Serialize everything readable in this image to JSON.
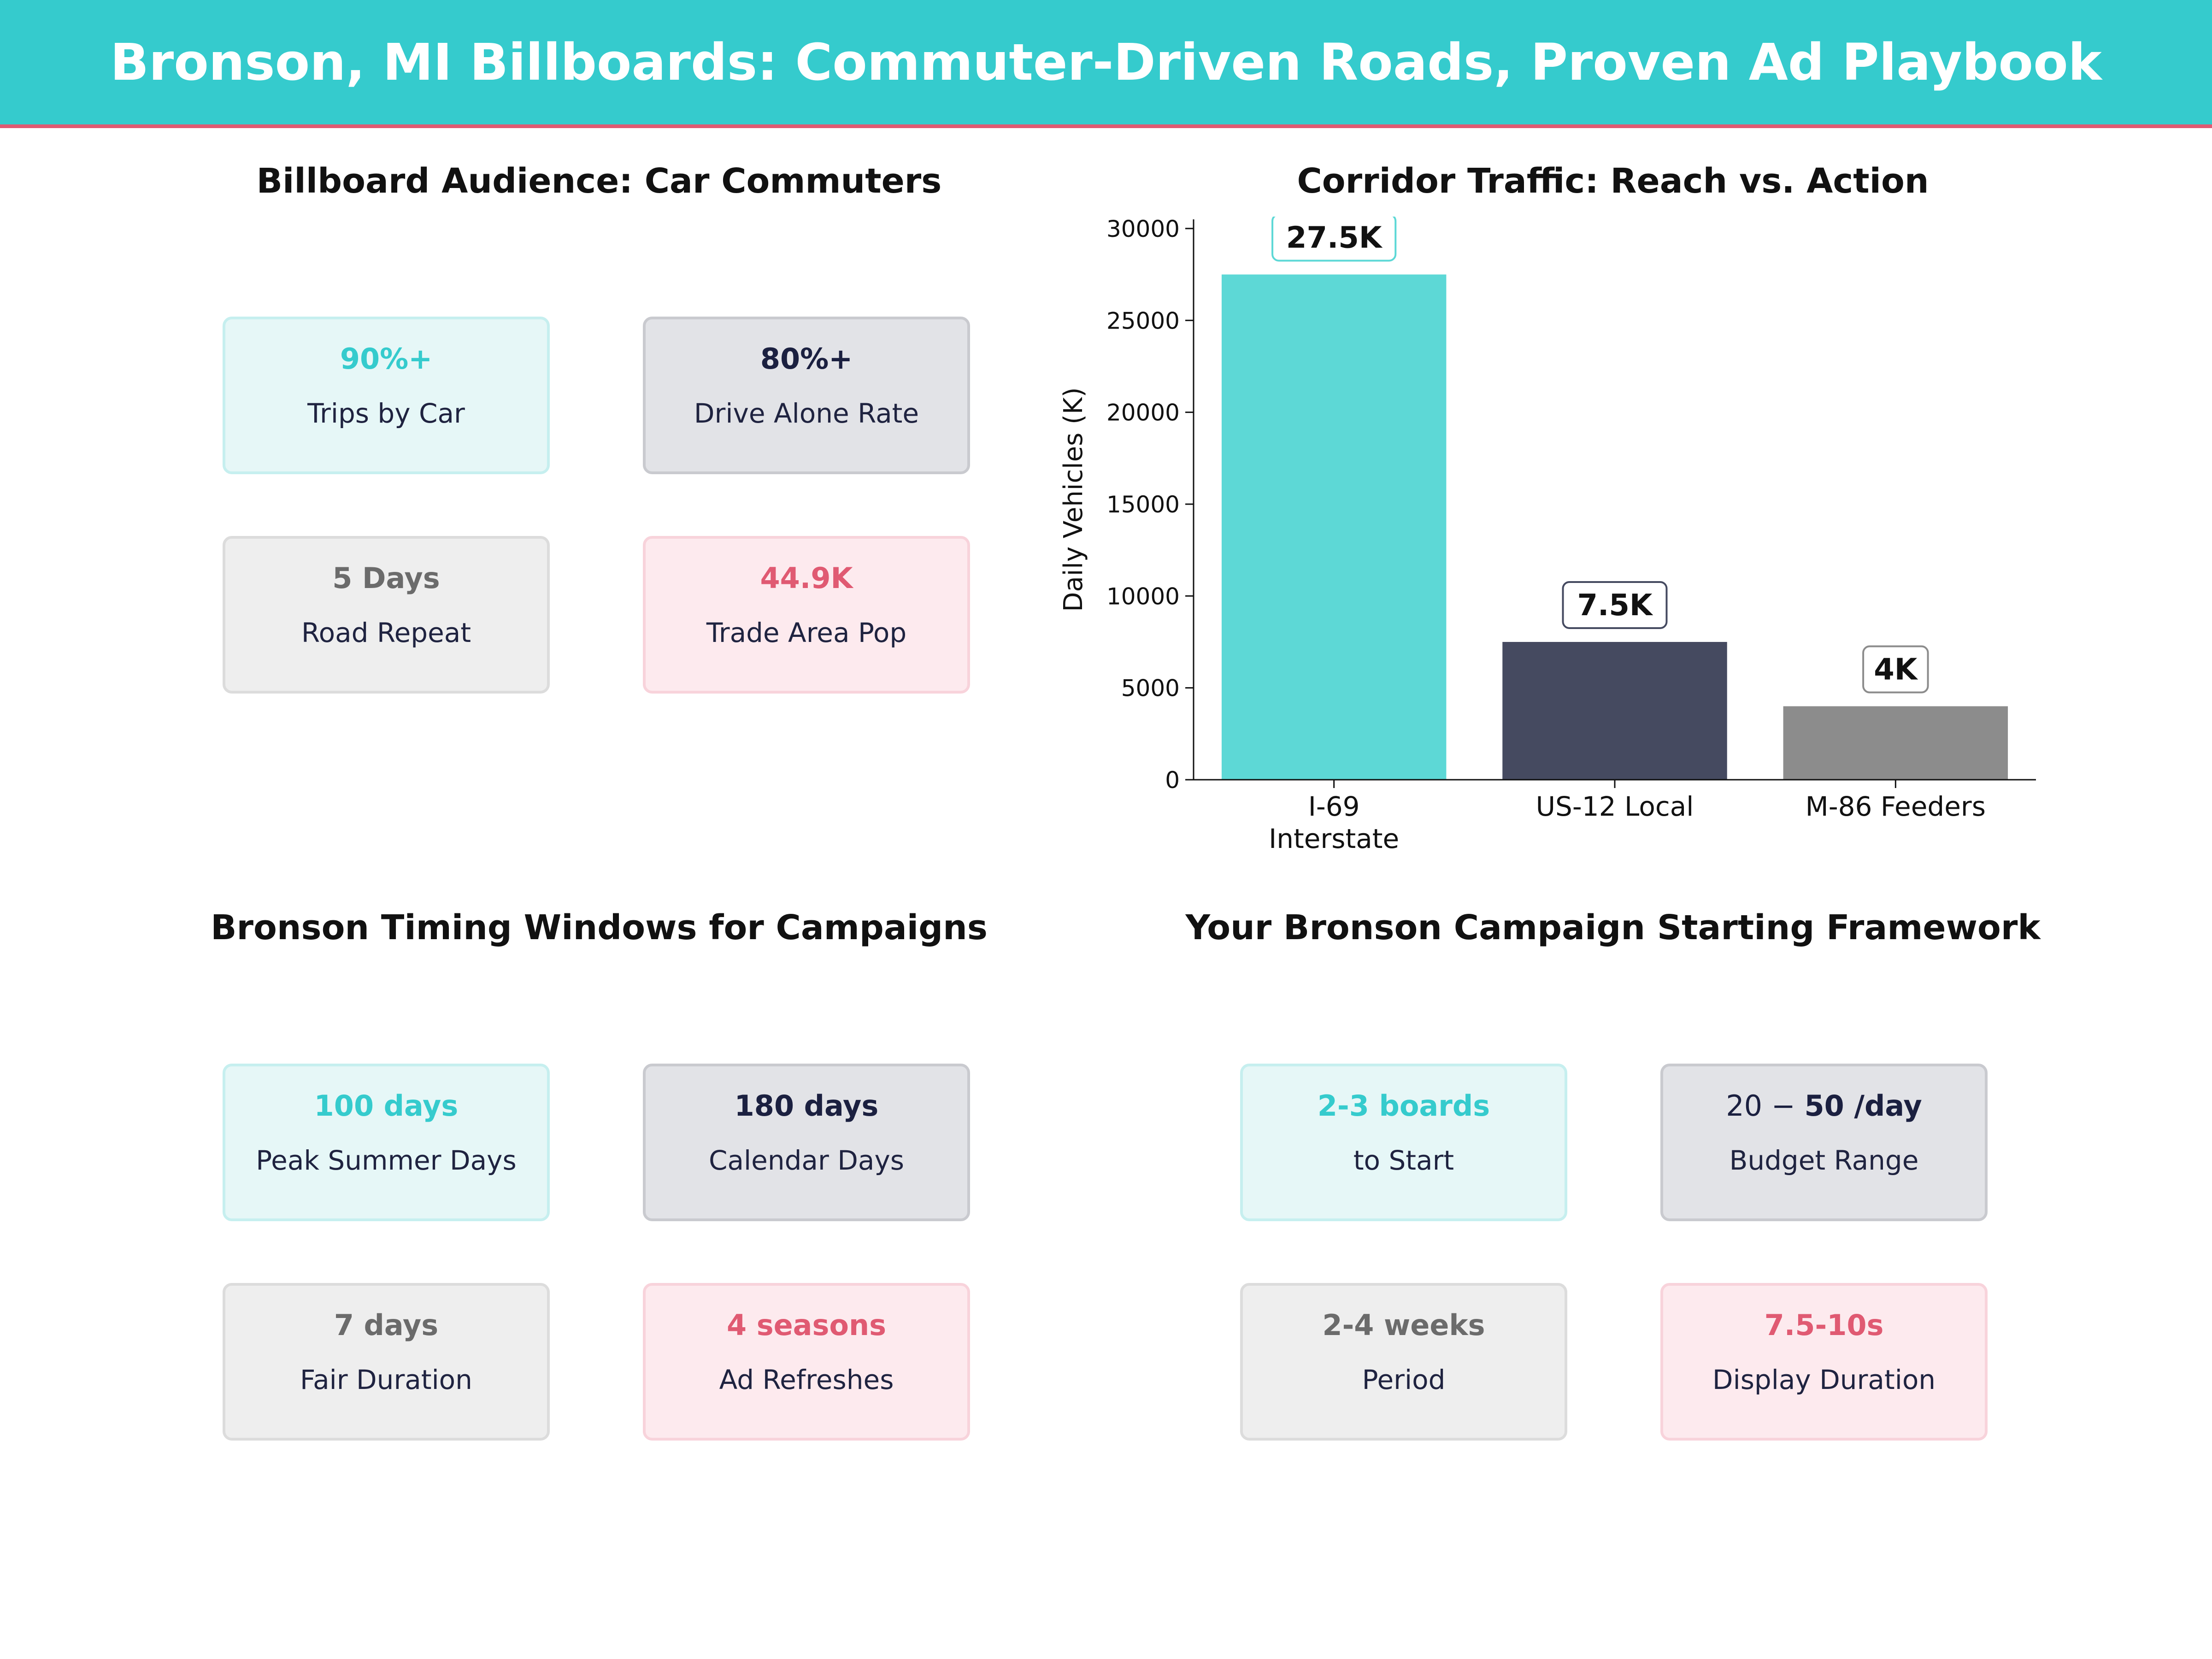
{
  "header": {
    "title": "Bronson, MI Billboards: Commuter-Driven Roads, Proven Ad Playbook"
  },
  "colors": {
    "banner": "#35CBCD",
    "banner_line": "#E05A72",
    "teal": "#35CBCD",
    "navy": "#1B2040",
    "gray": "#6B6B6B",
    "pink": "#E05A72",
    "bar_teal": "#5DD8D6",
    "bar_navy": "#454A60",
    "bar_gray": "#8C8C8C"
  },
  "audience": {
    "title": "Billboard Audience: Car Commuters",
    "cards": [
      {
        "value": "90%+",
        "label": "Trips by Car"
      },
      {
        "value": "80%+",
        "label": "Drive Alone Rate"
      },
      {
        "value": "5 Days",
        "label": "Road Repeat"
      },
      {
        "value": "44.9K",
        "label": "Trade Area Pop"
      }
    ]
  },
  "timing": {
    "title": "Bronson Timing Windows for Campaigns",
    "cards": [
      {
        "value": "100 days",
        "label": "Peak Summer Days"
      },
      {
        "value": "180 days",
        "label": "Calendar Days"
      },
      {
        "value": "7 days",
        "label": "Fair Duration"
      },
      {
        "value": "4 seasons",
        "label": "Ad Refreshes"
      }
    ]
  },
  "framework": {
    "title": "Your Bronson Campaign Starting Framework",
    "cards": [
      {
        "value": "2-3 boards",
        "label": "to Start"
      },
      {
        "value_prefix": "20 − ",
        "value": "50 /day",
        "label": "Budget Range"
      },
      {
        "value": "2-4 weeks",
        "label": "Period"
      },
      {
        "value": "7.5-10s",
        "label": "Display Duration"
      }
    ]
  },
  "chart_data": {
    "type": "bar",
    "title": "Corridor Traffic: Reach vs. Action",
    "ylabel": "Daily Vehicles (K)",
    "xlabel": "",
    "categories": [
      [
        "I-69",
        "Interstate"
      ],
      [
        "US-12 Local"
      ],
      [
        "M-86 Feeders"
      ]
    ],
    "values": [
      27500,
      7500,
      4000
    ],
    "data_labels": [
      "27.5K",
      "7.5K",
      "4K"
    ],
    "bar_colors": [
      "#5DD8D6",
      "#454A60",
      "#8C8C8C"
    ],
    "label_border_colors": [
      "#5DD8D6",
      "#454A60",
      "#8C8C8C"
    ],
    "ylim": [
      0,
      30500
    ],
    "yticks": [
      0,
      5000,
      10000,
      15000,
      20000,
      25000,
      30000
    ],
    "grid": false
  }
}
